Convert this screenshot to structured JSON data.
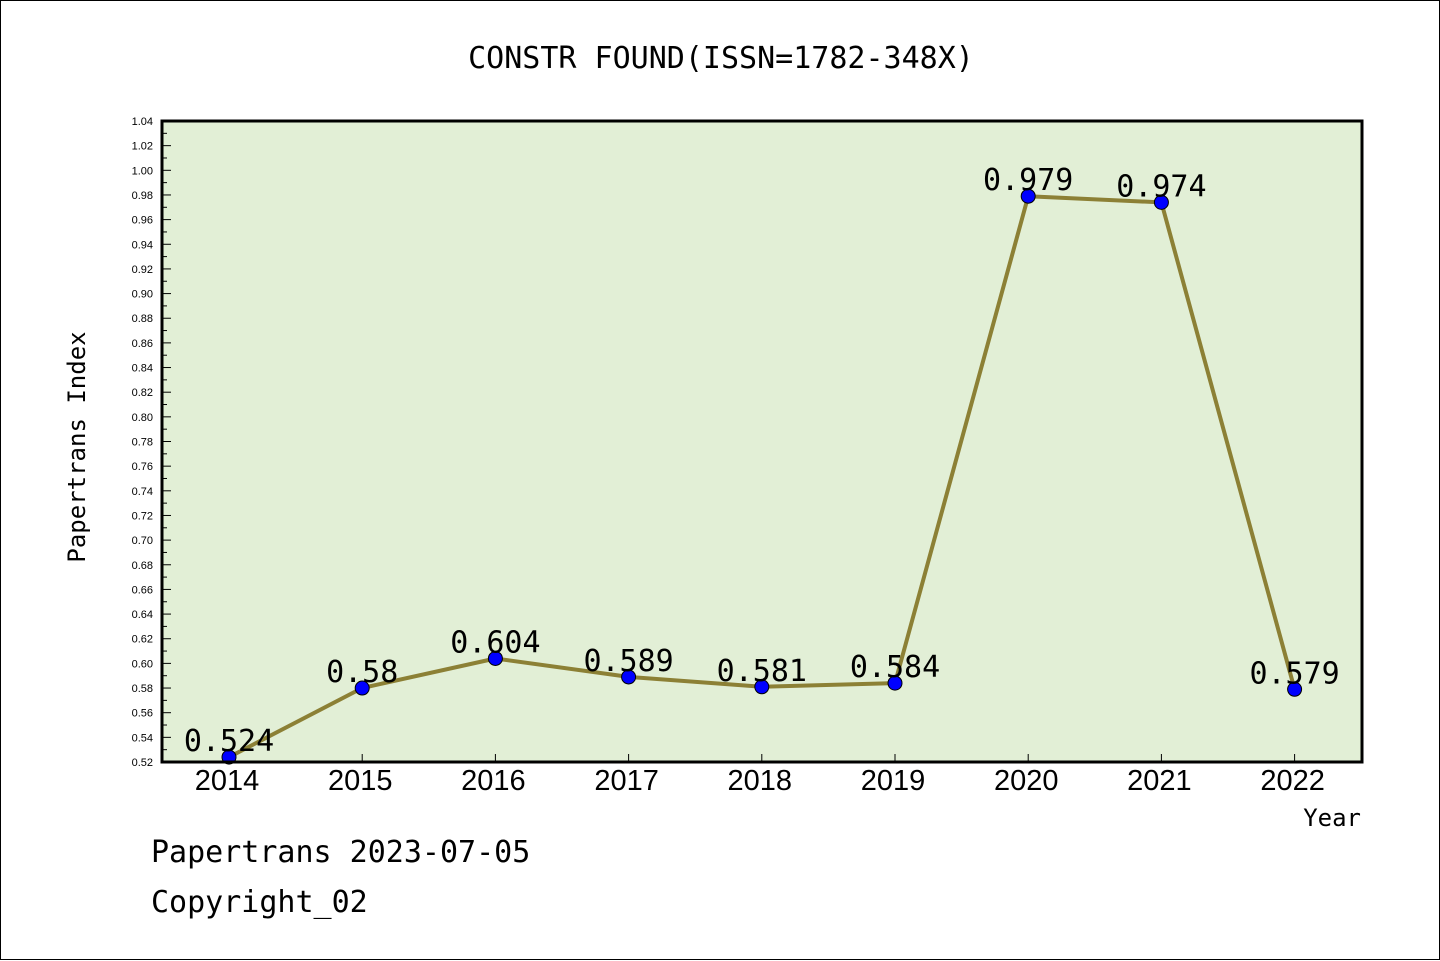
{
  "chart_data": {
    "type": "line",
    "title": "CONSTR FOUND(ISSN=1782-348X)",
    "xlabel": "Year",
    "ylabel": "Papertrans Index",
    "categories": [
      "2014",
      "2015",
      "2016",
      "2017",
      "2018",
      "2019",
      "2020",
      "2021",
      "2022"
    ],
    "series": [
      {
        "values": [
          0.524,
          0.58,
          0.604,
          0.589,
          0.581,
          0.584,
          0.979,
          0.974,
          0.579
        ],
        "labels": [
          "0.524",
          "0.58",
          "0.604",
          "0.589",
          "0.581",
          "0.584",
          "0.979",
          "0.974",
          "0.579"
        ],
        "line_color": "#8c8035",
        "marker_color": "#0000ff"
      }
    ],
    "ylim": [
      0.52,
      1.04
    ],
    "ytick_step": 0.02,
    "yticks": [
      "0.52",
      "0.54",
      "0.56",
      "0.58",
      "0.60",
      "0.62",
      "0.64",
      "0.66",
      "0.68",
      "0.70",
      "0.72",
      "0.74",
      "0.76",
      "0.78",
      "0.80",
      "0.82",
      "0.84",
      "0.86",
      "0.88",
      "0.90",
      "0.92",
      "0.94",
      "0.96",
      "0.98",
      "1.00",
      "1.02",
      "1.04"
    ],
    "grid": false,
    "plot_background": "#e2efd6"
  },
  "footer": {
    "line1": "Papertrans 2023-07-05",
    "line2": "Copyright_02"
  }
}
